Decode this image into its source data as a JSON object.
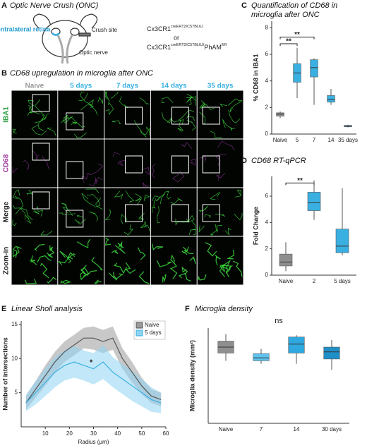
{
  "panel_a": {
    "letter": "A",
    "title": "Optic Nerve Crush (ONC)",
    "contralateral": "Contralateral retina",
    "crush_site": "Crush site",
    "optic_nerve": "Optic nerve",
    "genotype_1": {
      "base": "Cx3CR1",
      "sup": "creERT2/C57BL6J"
    },
    "or": "or",
    "genotype_2": {
      "base": "Cx3CR1",
      "sup": "creERT2/C57BL6J/",
      "suffix": "PhAM",
      "suffix_sup": "fl/fl"
    }
  },
  "panel_b": {
    "letter": "B",
    "title": "CD68 upregulation in microglia after ONC",
    "columns": [
      "Naive",
      "5 days",
      "7 days",
      "14 days",
      "35 days"
    ],
    "rows": [
      "IBA1",
      "CD68",
      "Merge",
      "Zoom-in"
    ]
  },
  "chart_data": [
    {
      "type": "box",
      "letter": "C",
      "title": "Quantification of CD68 in microglia after ONC",
      "ylabel": "% CD68 in IBA1",
      "categories": [
        "Naive",
        "5",
        "7",
        "14",
        "35 days"
      ],
      "colors": [
        "#8f8f8f",
        "#3ab0e2",
        "#3ab0e2",
        "#3ab0e2",
        "#3ab0e2"
      ],
      "boxes": [
        {
          "min": 1.2,
          "q1": 1.35,
          "median": 1.5,
          "q3": 1.6,
          "max": 1.7
        },
        {
          "min": 2.7,
          "q1": 3.9,
          "median": 4.6,
          "q3": 5.3,
          "max": 6.5
        },
        {
          "min": 2.2,
          "q1": 4.3,
          "median": 5.0,
          "q3": 5.6,
          "max": 5.7
        },
        {
          "min": 2.2,
          "q1": 2.4,
          "median": 2.6,
          "q3": 2.9,
          "max": 3.4
        },
        {
          "min": 0.5,
          "q1": 0.55,
          "median": 0.6,
          "q3": 0.65,
          "max": 0.7
        }
      ],
      "ylim": [
        0,
        8.5
      ],
      "yticks": [
        0,
        2,
        4,
        6,
        8
      ],
      "brackets": [
        {
          "text": "**",
          "between": [
            "Naive",
            "5"
          ],
          "y": 6.8
        },
        {
          "text": "**",
          "between": [
            "Naive",
            "7"
          ],
          "y": 7.3
        }
      ]
    },
    {
      "type": "box",
      "letter": "D",
      "title": "CD68 RT-qPCR",
      "ylabel": "Fold Change",
      "categories": [
        "Naive",
        "2",
        "5 days"
      ],
      "colors": [
        "#8f8f8f",
        "#3ab0e2",
        "#3ab0e2"
      ],
      "boxes": [
        {
          "min": 0.3,
          "q1": 0.7,
          "median": 1.0,
          "q3": 1.6,
          "max": 2.5
        },
        {
          "min": 4.2,
          "q1": 4.9,
          "median": 5.5,
          "q3": 6.3,
          "max": 7.2
        },
        {
          "min": 1.5,
          "q1": 1.7,
          "median": 2.2,
          "q3": 3.5,
          "max": 6.6
        }
      ],
      "ylim": [
        0,
        7.5
      ],
      "yticks": [
        0,
        2,
        4,
        6
      ],
      "brackets": [
        {
          "text": "**",
          "between": [
            "Naive",
            "2"
          ],
          "y": 7.0
        }
      ]
    },
    {
      "type": "band-line",
      "letter": "E",
      "title": "Linear Sholl analysis",
      "xlabel": "Radius (μm)",
      "ylabel": "Number of intersections",
      "x": [
        2,
        6,
        10,
        14,
        18,
        22,
        26,
        30,
        34,
        38,
        42,
        46,
        50,
        54,
        58
      ],
      "series": [
        {
          "name": "Naive",
          "color": "#555555",
          "fill": "#9a9a9a",
          "values": [
            3.5,
            5.5,
            7.5,
            9.5,
            11,
            12,
            13,
            13,
            12.5,
            13,
            10,
            8,
            6,
            4.5,
            4
          ],
          "lower": [
            2.5,
            4.3,
            6.0,
            8.0,
            9.5,
            10.5,
            11.5,
            11.3,
            10.8,
            11.3,
            8.5,
            6.5,
            4.8,
            3.5,
            3.0
          ],
          "upper": [
            4.5,
            6.7,
            9.0,
            11.0,
            12.5,
            13.5,
            14.5,
            14.7,
            14.2,
            14.7,
            11.5,
            9.5,
            7.2,
            5.5,
            5.0
          ]
        },
        {
          "name": "5 days",
          "color": "#3ab0e2",
          "fill": "#8fd3f3",
          "values": [
            3.5,
            5,
            6.5,
            8,
            9,
            9.5,
            9,
            8.5,
            9.5,
            8,
            7,
            6,
            5,
            4,
            3.5
          ],
          "lower": [
            2.3,
            3.3,
            4.5,
            5.8,
            6.8,
            7.2,
            6.8,
            6.2,
            7.0,
            5.8,
            4.8,
            3.8,
            3.0,
            2.2,
            2.0
          ],
          "upper": [
            4.7,
            6.7,
            8.5,
            10.2,
            11.2,
            11.8,
            11.2,
            10.8,
            12.0,
            10.2,
            9.2,
            8.2,
            7.0,
            5.8,
            5.0
          ]
        }
      ],
      "xlim": [
        0,
        60
      ],
      "xticks": [
        10,
        20,
        30,
        40,
        50,
        60
      ],
      "ylim": [
        0,
        15.5
      ],
      "yticks": [
        5,
        10,
        15
      ],
      "legend": "top-right",
      "annotations": [
        {
          "text": "*",
          "x": 29,
          "y": 9.4
        }
      ]
    },
    {
      "type": "box",
      "letter": "F",
      "title": "Microglia density",
      "ylabel": "Microglia density (mm²)",
      "categories": [
        "Naive",
        "7",
        "14",
        "30 days"
      ],
      "colors": [
        "#8f8f8f",
        "#5ec3ef",
        "#2fa8e0",
        "#1f8fc8"
      ],
      "boxes": [
        {
          "min": 105,
          "q1": 118,
          "median": 128,
          "q3": 138,
          "max": 150
        },
        {
          "min": 100,
          "q1": 105,
          "median": 110,
          "q3": 117,
          "max": 125
        },
        {
          "min": 100,
          "q1": 118,
          "median": 133,
          "q3": 145,
          "max": 148
        },
        {
          "min": 90,
          "q1": 108,
          "median": 120,
          "q3": 128,
          "max": 140
        }
      ],
      "ylim": [
        0,
        160
      ],
      "annotations": [
        {
          "text": "ns"
        }
      ]
    }
  ]
}
